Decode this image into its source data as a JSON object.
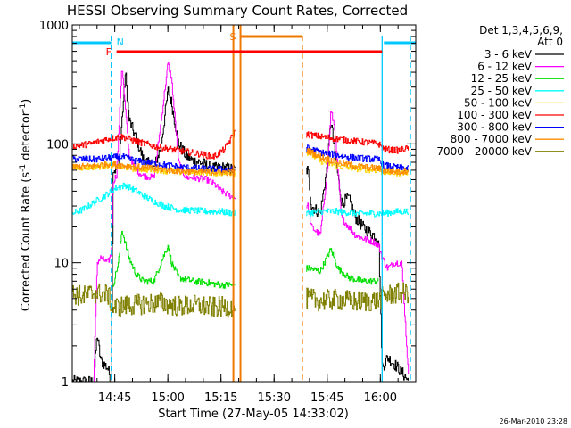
{
  "chart_data": {
    "type": "line",
    "title": "HESSI Observing Summary Count Rates, Corrected",
    "xlabel": "Start Time (27-May-05 14:33:02)",
    "ylabel_main": "Corrected Count Rate (s",
    "ylabel_sup1": "-1",
    "ylabel_mid": " detector",
    "ylabel_sup2": "-1",
    "ylabel_end": ")",
    "y_scale": "log",
    "ylim": [
      1,
      1000
    ],
    "xlim_minutes": [
      0,
      97
    ],
    "x_ticks": [
      {
        "m": 12,
        "label": "14:45"
      },
      {
        "m": 27,
        "label": "15:00"
      },
      {
        "m": 42,
        "label": "15:15"
      },
      {
        "m": 57,
        "label": "15:30"
      },
      {
        "m": 72,
        "label": "15:45"
      },
      {
        "m": 87,
        "label": "16:00"
      }
    ],
    "y_ticks": [
      {
        "v": 1,
        "label": "1"
      },
      {
        "v": 10,
        "label": "10"
      },
      {
        "v": 100,
        "label": "100"
      },
      {
        "v": 1000,
        "label": "1000"
      }
    ],
    "legend_title": [
      "Det 1,3,4,5,6,9,",
      "Att 0"
    ],
    "timestamp": "26-Mar-2010 23:28",
    "annotations": [
      {
        "label": "N",
        "color": "#00c8ff"
      },
      {
        "label": "S",
        "color": "#f07800"
      },
      {
        "label": "F",
        "color": "#ff0000"
      }
    ],
    "markers": {
      "night": [
        [
          0,
          11
        ],
        [
          88,
          97
        ]
      ],
      "saa": [
        47.5,
        65
      ],
      "flare": [
        12.5,
        87.5
      ],
      "n_lines": [
        11,
        87.5,
        95.5
      ],
      "s_lines": [
        45.5,
        47.5
      ],
      "s_dashed": 65
    },
    "gap": [
      46,
      66
    ],
    "series": [
      {
        "name": "3 - 6 keV",
        "color": "#000000",
        "points": [
          [
            0,
            1
          ],
          [
            6,
            1
          ],
          [
            7,
            2.5
          ],
          [
            8,
            1.5
          ],
          [
            10,
            1.3
          ],
          [
            11,
            1
          ],
          [
            11.5,
            60
          ],
          [
            13,
            62
          ],
          [
            15,
            400
          ],
          [
            16,
            160
          ],
          [
            18,
            110
          ],
          [
            20,
            75
          ],
          [
            23,
            62
          ],
          [
            25,
            95
          ],
          [
            27,
            280
          ],
          [
            28,
            220
          ],
          [
            30,
            100
          ],
          [
            32,
            80
          ],
          [
            34,
            72
          ],
          [
            36,
            70
          ],
          [
            38,
            66
          ],
          [
            40,
            62
          ],
          [
            42,
            63
          ],
          [
            44,
            62
          ],
          [
            45.8,
            60
          ],
          [
            66.5,
            60
          ],
          [
            67.5,
            30
          ],
          [
            70,
            26
          ],
          [
            72,
            65
          ],
          [
            73,
            160
          ],
          [
            74,
            90
          ],
          [
            76,
            32
          ],
          [
            78,
            35
          ],
          [
            80,
            24
          ],
          [
            82,
            20
          ],
          [
            84,
            18
          ],
          [
            86.5,
            16
          ],
          [
            87.5,
            1.3
          ],
          [
            89,
            1.6
          ],
          [
            91,
            1.4
          ],
          [
            93,
            1.2
          ],
          [
            95,
            1
          ]
        ]
      },
      {
        "name": "6 - 12 keV",
        "color": "#ff00ff",
        "points": [
          [
            6,
            1
          ],
          [
            7,
            10
          ],
          [
            8,
            11
          ],
          [
            10,
            10
          ],
          [
            11,
            12
          ],
          [
            11.5,
            48
          ],
          [
            12.5,
            55
          ],
          [
            14,
            460
          ],
          [
            16,
            80
          ],
          [
            18,
            60
          ],
          [
            20,
            54
          ],
          [
            23,
            52
          ],
          [
            25,
            150
          ],
          [
            27,
            480
          ],
          [
            28,
            350
          ],
          [
            30,
            70
          ],
          [
            32,
            52
          ],
          [
            34,
            52
          ],
          [
            38,
            50
          ],
          [
            40,
            46
          ],
          [
            42,
            40
          ],
          [
            45.8,
            35
          ],
          [
            66.5,
            30
          ],
          [
            67.5,
            20
          ],
          [
            70,
            17
          ],
          [
            72,
            60
          ],
          [
            73,
            190
          ],
          [
            74,
            140
          ],
          [
            76,
            24
          ],
          [
            78,
            20
          ],
          [
            80,
            17
          ],
          [
            82,
            16
          ],
          [
            85,
            15
          ],
          [
            86.5,
            14
          ],
          [
            87.5,
            11
          ],
          [
            89,
            9
          ],
          [
            91,
            10
          ],
          [
            93,
            10
          ],
          [
            95,
            1
          ]
        ]
      },
      {
        "name": "12 - 25 keV",
        "color": "#00e000",
        "points": [
          [
            11.5,
            6.5
          ],
          [
            13,
            10
          ],
          [
            14,
            19
          ],
          [
            16,
            11
          ],
          [
            18,
            8
          ],
          [
            20,
            7
          ],
          [
            23,
            7
          ],
          [
            25,
            10
          ],
          [
            27,
            14
          ],
          [
            28,
            10
          ],
          [
            30,
            7.5
          ],
          [
            34,
            7
          ],
          [
            38,
            6.8
          ],
          [
            42,
            6.5
          ],
          [
            45.8,
            6.5
          ],
          [
            66.5,
            9
          ],
          [
            70,
            8.5
          ],
          [
            73,
            13
          ],
          [
            75,
            9
          ],
          [
            78,
            7.5
          ],
          [
            82,
            7
          ],
          [
            86.5,
            7
          ]
        ]
      },
      {
        "name": "25 - 50 keV",
        "color": "#00ffff",
        "points": [
          [
            0,
            26
          ],
          [
            3,
            28
          ],
          [
            6,
            32
          ],
          [
            10,
            38
          ],
          [
            12,
            42
          ],
          [
            15,
            45
          ],
          [
            18,
            40
          ],
          [
            22,
            34
          ],
          [
            26,
            30
          ],
          [
            30,
            28
          ],
          [
            34,
            27.5
          ],
          [
            38,
            27
          ],
          [
            42,
            27
          ],
          [
            45.8,
            26
          ],
          [
            66.5,
            26
          ],
          [
            70,
            27
          ],
          [
            75,
            27
          ],
          [
            80,
            26
          ],
          [
            86.5,
            26
          ],
          [
            88,
            26
          ],
          [
            92,
            27
          ],
          [
            95,
            27
          ]
        ]
      },
      {
        "name": "50 - 100 keV",
        "color": "#ffd200",
        "points": [
          [
            0,
            63
          ],
          [
            6,
            64
          ],
          [
            10,
            66
          ],
          [
            14,
            64
          ],
          [
            18,
            62
          ],
          [
            25,
            60
          ],
          [
            30,
            58
          ],
          [
            36,
            58
          ],
          [
            42,
            57
          ],
          [
            45.8,
            57
          ],
          [
            66.5,
            85
          ],
          [
            70,
            72
          ],
          [
            75,
            65
          ],
          [
            80,
            62
          ],
          [
            86.5,
            60
          ],
          [
            88,
            58
          ],
          [
            92,
            57
          ],
          [
            95,
            58
          ]
        ]
      },
      {
        "name": "100 - 300 keV",
        "color": "#ff0000",
        "points": [
          [
            0,
            95
          ],
          [
            5,
            100
          ],
          [
            10,
            110
          ],
          [
            14,
            115
          ],
          [
            18,
            105
          ],
          [
            24,
            94
          ],
          [
            30,
            88
          ],
          [
            36,
            82
          ],
          [
            40,
            78
          ],
          [
            43,
            90
          ],
          [
            45.8,
            125
          ],
          [
            66.5,
            120
          ],
          [
            70,
            115
          ],
          [
            75,
            110
          ],
          [
            80,
            105
          ],
          [
            84,
            102
          ],
          [
            86.5,
            100
          ],
          [
            88,
            90
          ],
          [
            92,
            88
          ],
          [
            95,
            92
          ]
        ]
      },
      {
        "name": "300 - 800 keV",
        "color": "#0000ff",
        "points": [
          [
            0,
            75
          ],
          [
            6,
            74
          ],
          [
            10,
            76
          ],
          [
            14,
            78
          ],
          [
            18,
            72
          ],
          [
            24,
            68
          ],
          [
            30,
            64
          ],
          [
            36,
            62
          ],
          [
            42,
            61
          ],
          [
            45.8,
            61
          ],
          [
            66.5,
            92
          ],
          [
            70,
            85
          ],
          [
            75,
            80
          ],
          [
            80,
            76
          ],
          [
            86.5,
            74
          ],
          [
            88,
            66
          ],
          [
            92,
            63
          ],
          [
            95,
            62
          ]
        ]
      },
      {
        "name": "800 - 7000 keV",
        "color": "#ff8c00",
        "points": [
          [
            0,
            64
          ],
          [
            6,
            65
          ],
          [
            10,
            68
          ],
          [
            14,
            66
          ],
          [
            18,
            64
          ],
          [
            25,
            61
          ],
          [
            30,
            59
          ],
          [
            36,
            58
          ],
          [
            42,
            58
          ],
          [
            45.8,
            57
          ],
          [
            66.5,
            88
          ],
          [
            70,
            78
          ],
          [
            75,
            70
          ],
          [
            80,
            65
          ],
          [
            86.5,
            62
          ],
          [
            88,
            60
          ],
          [
            92,
            58
          ],
          [
            95,
            60
          ]
        ]
      },
      {
        "name": "7000 - 20000 keV",
        "color": "#808000",
        "points": [
          [
            0,
            5.5
          ],
          [
            3,
            5.2
          ],
          [
            6,
            5.6
          ],
          [
            10,
            5.4
          ],
          [
            11.5,
            4.2
          ],
          [
            16,
            4.4
          ],
          [
            20,
            4.5
          ],
          [
            25,
            4.6
          ],
          [
            30,
            4.3
          ],
          [
            35,
            4.4
          ],
          [
            40,
            4.2
          ],
          [
            45.8,
            4.3
          ],
          [
            66.5,
            5
          ],
          [
            70,
            4.8
          ],
          [
            75,
            4.9
          ],
          [
            80,
            4.7
          ],
          [
            86.5,
            4.8
          ],
          [
            88,
            5.3
          ],
          [
            92,
            5.5
          ],
          [
            95,
            5.6
          ]
        ]
      }
    ]
  }
}
